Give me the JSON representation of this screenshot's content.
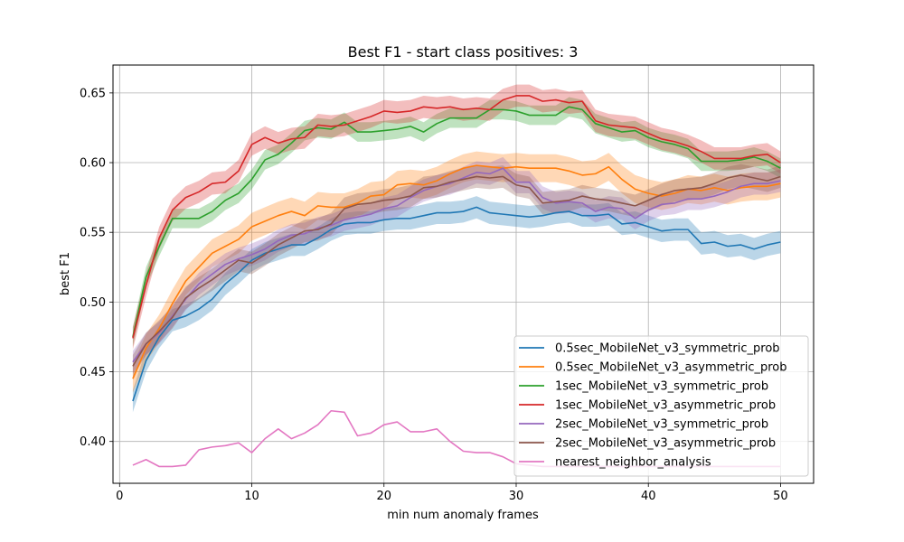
{
  "chart_data": {
    "type": "line",
    "title": "Best F1 - start class positives: 3",
    "xlabel": "min num anomaly frames",
    "ylabel": "best F1",
    "xlim": [
      -0.5,
      52.5
    ],
    "ylim": [
      0.37,
      0.67
    ],
    "xticks": [
      0,
      10,
      20,
      30,
      40,
      50
    ],
    "yticks": [
      0.4,
      0.45,
      0.5,
      0.55,
      0.6,
      0.65
    ],
    "ytick_labels": [
      "0.40",
      "0.45",
      "0.50",
      "0.55",
      "0.60",
      "0.65"
    ],
    "grid": true,
    "legend_position": "lower-right",
    "x": [
      1,
      2,
      3,
      4,
      5,
      6,
      7,
      8,
      9,
      10,
      11,
      12,
      13,
      14,
      15,
      16,
      17,
      18,
      19,
      20,
      21,
      22,
      23,
      24,
      25,
      26,
      27,
      28,
      29,
      30,
      31,
      32,
      33,
      34,
      35,
      36,
      37,
      38,
      39,
      40,
      41,
      42,
      43,
      44,
      45,
      46,
      47,
      48,
      49,
      50
    ],
    "series": [
      {
        "name": "0.5sec_MobileNet_v3_symmetric_prob",
        "color": "#1f77b4",
        "band": 0.008,
        "values": [
          0.429,
          0.458,
          0.475,
          0.487,
          0.49,
          0.495,
          0.502,
          0.513,
          0.521,
          0.53,
          0.535,
          0.538,
          0.541,
          0.541,
          0.546,
          0.552,
          0.556,
          0.557,
          0.557,
          0.559,
          0.56,
          0.56,
          0.562,
          0.564,
          0.564,
          0.565,
          0.568,
          0.564,
          0.563,
          0.562,
          0.561,
          0.562,
          0.564,
          0.565,
          0.562,
          0.562,
          0.563,
          0.556,
          0.557,
          0.554,
          0.551,
          0.552,
          0.552,
          0.542,
          0.543,
          0.54,
          0.541,
          0.538,
          0.541,
          0.543
        ]
      },
      {
        "name": "0.5sec_MobileNet_v3_asymmetric_prob",
        "color": "#ff7f0e",
        "band": 0.01,
        "values": [
          0.445,
          0.467,
          0.481,
          0.499,
          0.515,
          0.525,
          0.535,
          0.54,
          0.545,
          0.554,
          0.558,
          0.562,
          0.565,
          0.562,
          0.569,
          0.568,
          0.568,
          0.571,
          0.576,
          0.577,
          0.584,
          0.585,
          0.584,
          0.587,
          0.592,
          0.596,
          0.598,
          0.597,
          0.596,
          0.597,
          0.596,
          0.596,
          0.596,
          0.594,
          0.591,
          0.592,
          0.597,
          0.588,
          0.581,
          0.578,
          0.576,
          0.578,
          0.581,
          0.58,
          0.582,
          0.58,
          0.582,
          0.583,
          0.583,
          0.585
        ]
      },
      {
        "name": "1sec_MobileNet_v3_symmetric_prob",
        "color": "#2ca02c",
        "band": 0.007,
        "values": [
          0.475,
          0.518,
          0.54,
          0.56,
          0.56,
          0.56,
          0.565,
          0.573,
          0.578,
          0.588,
          0.602,
          0.606,
          0.614,
          0.623,
          0.625,
          0.624,
          0.629,
          0.622,
          0.622,
          0.623,
          0.624,
          0.626,
          0.622,
          0.628,
          0.632,
          0.632,
          0.632,
          0.638,
          0.638,
          0.637,
          0.634,
          0.634,
          0.634,
          0.64,
          0.638,
          0.628,
          0.625,
          0.622,
          0.623,
          0.618,
          0.615,
          0.613,
          0.61,
          0.601,
          0.601,
          0.601,
          0.602,
          0.604,
          0.601,
          0.596
        ]
      },
      {
        "name": "1sec_MobileNet_v3_asymmetric_prob",
        "color": "#d62728",
        "band": 0.008,
        "values": [
          0.474,
          0.512,
          0.546,
          0.566,
          0.575,
          0.579,
          0.585,
          0.586,
          0.594,
          0.613,
          0.618,
          0.614,
          0.617,
          0.618,
          0.627,
          0.626,
          0.627,
          0.63,
          0.633,
          0.637,
          0.636,
          0.637,
          0.64,
          0.639,
          0.64,
          0.638,
          0.639,
          0.638,
          0.645,
          0.648,
          0.648,
          0.644,
          0.645,
          0.643,
          0.644,
          0.63,
          0.627,
          0.626,
          0.625,
          0.621,
          0.617,
          0.615,
          0.612,
          0.608,
          0.603,
          0.603,
          0.603,
          0.605,
          0.606,
          0.6
        ]
      },
      {
        "name": "2sec_MobileNet_v3_symmetric_prob",
        "color": "#9467bd",
        "band": 0.008,
        "values": [
          0.457,
          0.47,
          0.478,
          0.49,
          0.502,
          0.513,
          0.52,
          0.527,
          0.531,
          0.534,
          0.538,
          0.544,
          0.548,
          0.549,
          0.553,
          0.555,
          0.559,
          0.561,
          0.563,
          0.567,
          0.569,
          0.575,
          0.58,
          0.583,
          0.585,
          0.589,
          0.593,
          0.592,
          0.596,
          0.586,
          0.586,
          0.575,
          0.571,
          0.572,
          0.571,
          0.565,
          0.568,
          0.567,
          0.56,
          0.566,
          0.57,
          0.571,
          0.574,
          0.574,
          0.576,
          0.579,
          0.583,
          0.585,
          0.585,
          0.587
        ]
      },
      {
        "name": "2sec_MobileNet_v3_asymmetric_prob",
        "color": "#8c564b",
        "band": 0.008,
        "values": [
          0.454,
          0.47,
          0.479,
          0.489,
          0.503,
          0.51,
          0.516,
          0.523,
          0.53,
          0.528,
          0.534,
          0.541,
          0.546,
          0.551,
          0.552,
          0.556,
          0.567,
          0.57,
          0.571,
          0.573,
          0.574,
          0.576,
          0.582,
          0.583,
          0.586,
          0.588,
          0.59,
          0.589,
          0.59,
          0.584,
          0.582,
          0.571,
          0.572,
          0.573,
          0.576,
          0.574,
          0.573,
          0.571,
          0.569,
          0.573,
          0.577,
          0.58,
          0.581,
          0.582,
          0.585,
          0.589,
          0.591,
          0.589,
          0.587,
          0.59
        ]
      },
      {
        "name": "nearest_neighbor_analysis",
        "color": "#e377c2",
        "band": 0,
        "values": [
          0.383,
          0.387,
          0.382,
          0.382,
          0.383,
          0.394,
          0.396,
          0.397,
          0.399,
          0.392,
          0.402,
          0.409,
          0.402,
          0.406,
          0.412,
          0.422,
          0.421,
          0.404,
          0.406,
          0.412,
          0.414,
          0.407,
          0.407,
          0.409,
          0.4,
          0.393,
          0.392,
          0.392,
          0.389,
          0.384,
          0.383,
          0.382,
          0.382,
          0.382,
          0.382,
          0.382,
          0.382,
          0.382,
          0.382,
          0.382,
          0.382,
          0.382,
          0.382,
          0.382,
          0.382,
          0.382,
          0.382,
          0.382,
          0.382,
          0.382
        ]
      }
    ]
  }
}
